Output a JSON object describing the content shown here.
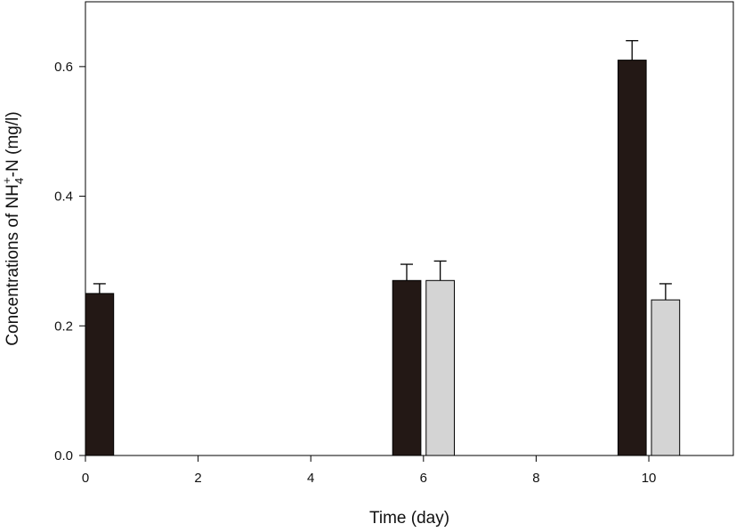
{
  "chart_data": {
    "type": "bar",
    "title": "",
    "xlabel": "Time (day)",
    "ylabel": {
      "prefix": "Concentrations of NH",
      "subscript": "4",
      "superscript": "+",
      "suffix": "-N (mg/l)"
    },
    "xlim": [
      0,
      11.5
    ],
    "ylim": [
      0,
      0.7
    ],
    "x_ticks": [
      0,
      2,
      4,
      6,
      8,
      10
    ],
    "y_ticks": [
      0.0,
      0.2,
      0.4,
      0.6
    ],
    "y_tick_labels": [
      "0.0",
      "0.2",
      "0.4",
      "0.6"
    ],
    "grid": false,
    "legend": "none",
    "series": [
      {
        "color": "#231815",
        "x": [
          0,
          6,
          10
        ],
        "values": [
          0.25,
          0.27,
          0.61
        ],
        "error": [
          0.015,
          0.025,
          0.03
        ]
      },
      {
        "color": "#d4d4d4",
        "x": [
          6,
          10
        ],
        "values": [
          0.27,
          0.24
        ],
        "error": [
          0.03,
          0.025
        ]
      }
    ]
  }
}
